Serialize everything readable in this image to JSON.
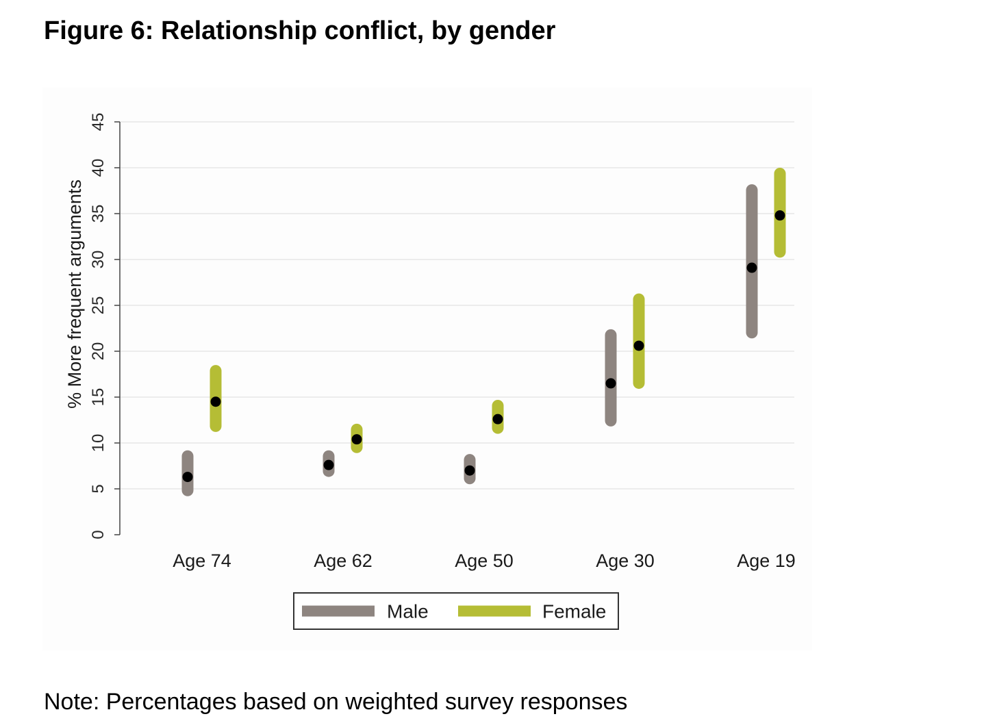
{
  "title": "Figure 6: Relationship conflict, by gender",
  "note": "Note: Percentages based on weighted survey responses",
  "chart_data": {
    "type": "range",
    "categories": [
      "Age 74",
      "Age 62",
      "Age 50",
      "Age 30",
      "Age 19"
    ],
    "ylabel": "% More frequent arguments",
    "xlabel": "",
    "ylim": [
      0,
      45
    ],
    "yticks": [
      0,
      5,
      10,
      15,
      20,
      25,
      30,
      35,
      40,
      45
    ],
    "grid": true,
    "legend_position": "bottom",
    "series": [
      {
        "name": "Male",
        "color": "#8e8580",
        "point": [
          6.3,
          7.6,
          7.0,
          16.5,
          29.1
        ],
        "low": [
          4.2,
          6.3,
          5.5,
          11.8,
          21.4
        ],
        "high": [
          9.2,
          9.2,
          8.8,
          22.4,
          38.2
        ]
      },
      {
        "name": "Female",
        "color": "#b5bd35",
        "point": [
          14.5,
          10.4,
          12.6,
          20.6,
          34.8
        ],
        "low": [
          11.2,
          8.9,
          11.0,
          15.9,
          30.2
        ],
        "high": [
          18.5,
          12.1,
          14.7,
          26.3,
          40.0
        ]
      }
    ]
  }
}
